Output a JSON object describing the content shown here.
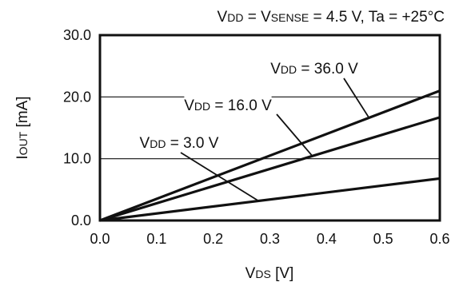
{
  "chart_data": {
    "type": "line",
    "title": {
      "parts": [
        {
          "text": "V",
          "sub": false
        },
        {
          "text": "DD",
          "sub": true
        },
        {
          "text": " = V",
          "sub": false
        },
        {
          "text": "SENSE",
          "sub": true
        },
        {
          "text": " = 4.5 V, Ta = +25°C",
          "sub": false
        }
      ]
    },
    "xlabel": {
      "parts": [
        {
          "text": "V",
          "sub": false
        },
        {
          "text": "DS",
          "sub": true
        },
        {
          "text": " [V]",
          "sub": false
        }
      ]
    },
    "ylabel": {
      "parts": [
        {
          "text": "I",
          "sub": false
        },
        {
          "text": "OUT",
          "sub": true
        },
        {
          "text": " [mA]",
          "sub": false
        }
      ]
    },
    "xlim": [
      0.0,
      0.6
    ],
    "ylim": [
      0.0,
      30.0
    ],
    "x_ticks": [
      0.0,
      0.1,
      0.2,
      0.3,
      0.4,
      0.5,
      0.6
    ],
    "x_tick_labels": [
      "0.0",
      "0.1",
      "0.2",
      "0.3",
      "0.4",
      "0.5",
      "0.6"
    ],
    "y_ticks": [
      0.0,
      10.0,
      20.0,
      30.0
    ],
    "y_tick_labels": [
      "0.0",
      "10.0",
      "20.0",
      "30.0"
    ],
    "grid": true,
    "series": [
      {
        "key": "vdd-3-0",
        "x": [
          0.0,
          0.6
        ],
        "y": [
          0.0,
          6.8
        ],
        "label": {
          "parts": [
            {
              "text": "V",
              "sub": false
            },
            {
              "text": "DD",
              "sub": true
            },
            {
              "text": " = 3.0 V",
              "sub": false
            }
          ]
        },
        "pointer_at_x": 0.28
      },
      {
        "key": "vdd-16-0",
        "x": [
          0.0,
          0.6
        ],
        "y": [
          0.0,
          16.7
        ],
        "label": {
          "parts": [
            {
              "text": "V",
              "sub": false
            },
            {
              "text": "DD",
              "sub": true
            },
            {
              "text": " = 16.0 V",
              "sub": false
            }
          ]
        },
        "pointer_at_x": 0.375
      },
      {
        "key": "vdd-36-0",
        "x": [
          0.0,
          0.6
        ],
        "y": [
          0.0,
          21.0
        ],
        "label": {
          "parts": [
            {
              "text": "V",
              "sub": false
            },
            {
              "text": "DD",
              "sub": true
            },
            {
              "text": " = 36.0 V",
              "sub": false
            }
          ]
        },
        "pointer_at_x": 0.475
      }
    ]
  }
}
